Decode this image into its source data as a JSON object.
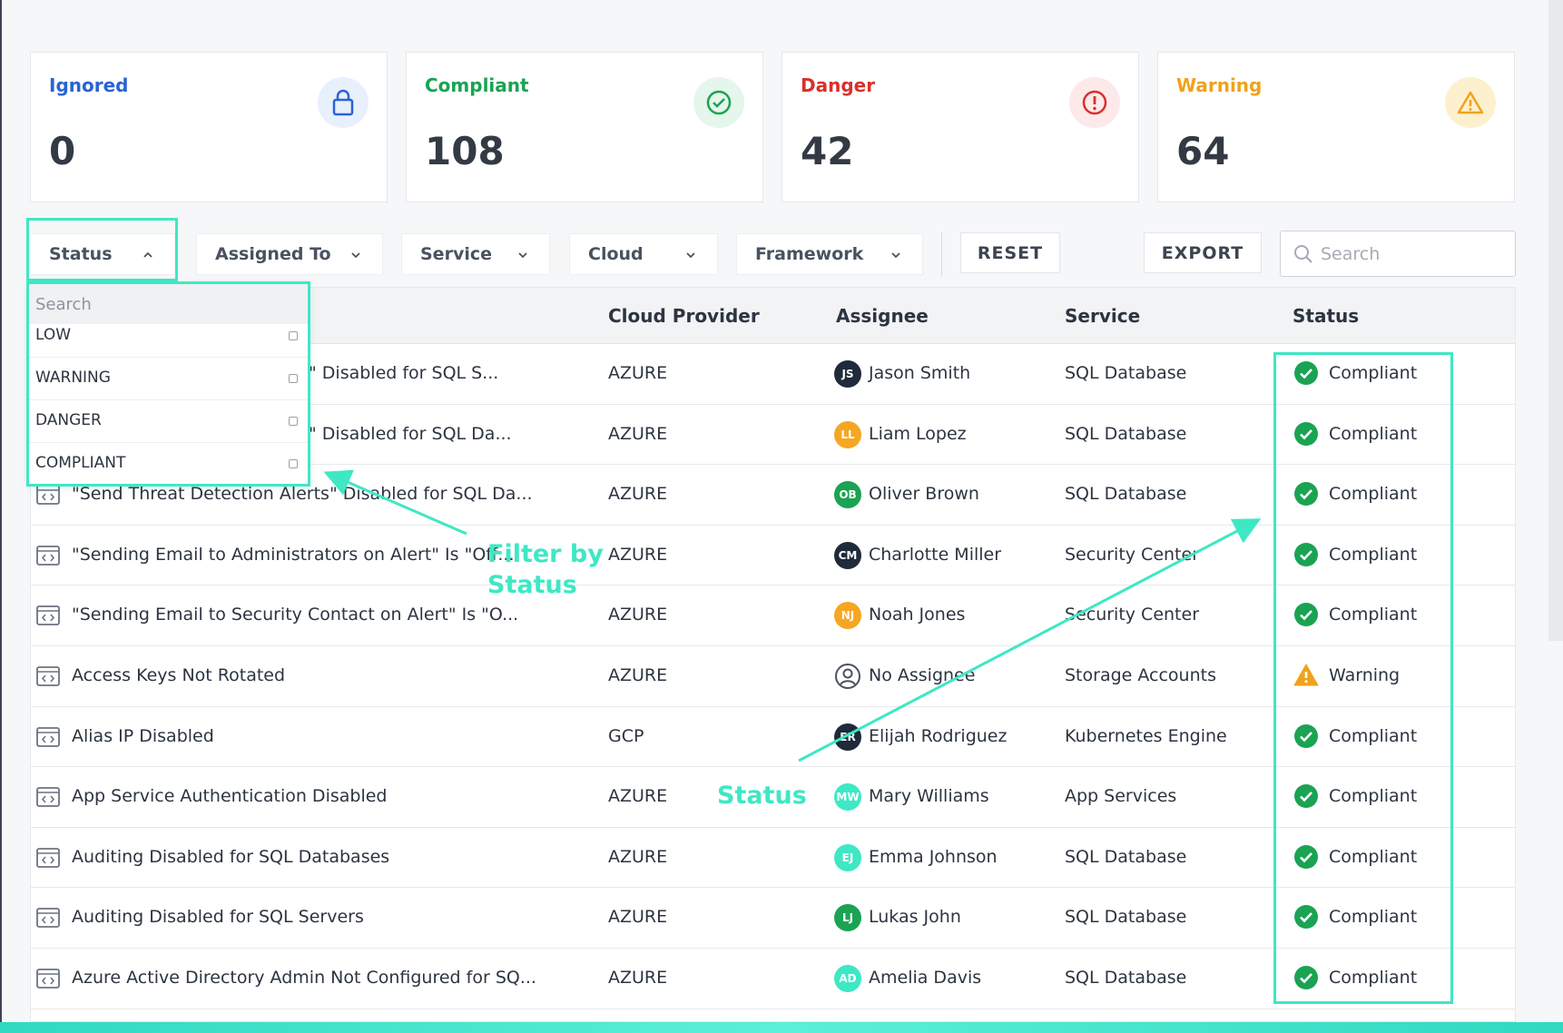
{
  "cards": [
    {
      "label": "Ignored",
      "value": "0",
      "color": "#2a63d4",
      "icon": "lock-icon"
    },
    {
      "label": "Compliant",
      "value": "108",
      "color": "#1aa353",
      "icon": "check-circle-icon"
    },
    {
      "label": "Danger",
      "value": "42",
      "color": "#d9302c",
      "icon": "exclamation-circle-icon"
    },
    {
      "label": "Warning",
      "value": "64",
      "color": "#f0a21b",
      "icon": "warning-triangle-icon"
    }
  ],
  "filters": {
    "status": "Status",
    "assigned_to": "Assigned To",
    "service": "Service",
    "cloud": "Cloud",
    "framework": "Framework"
  },
  "buttons": {
    "reset": "RESET",
    "export": "EXPORT"
  },
  "search": {
    "placeholder": "Search"
  },
  "table": {
    "headers": {
      "cloud_provider": "Cloud Provider",
      "assignee": "Assignee",
      "service": "Service",
      "status": "Status"
    },
    "rows": [
      {
        "name": "\" Disabled for SQL S...",
        "cloud": "AZURE",
        "initials": "JS",
        "avatar_color": "#1f2a3a",
        "assignee": "Jason Smith",
        "service": "SQL Database",
        "status": "Compliant"
      },
      {
        "name": "\" Disabled for SQL Da...",
        "cloud": "AZURE",
        "initials": "LL",
        "avatar_color": "#f5a623",
        "assignee": "Liam Lopez",
        "service": "SQL Database",
        "status": "Compliant"
      },
      {
        "name": "\"Send Threat Detection Alerts\" Disabled for SQL Da...",
        "cloud": "AZURE",
        "initials": "OB",
        "avatar_color": "#1aa353",
        "assignee": "Oliver Brown",
        "service": "SQL Database",
        "status": "Compliant"
      },
      {
        "name": "\"Sending Email to Administrators on Alert\" Is \"Off...",
        "cloud": "AZURE",
        "initials": "CM",
        "avatar_color": "#1f2a3a",
        "assignee": "Charlotte Miller",
        "service": "Security Center",
        "status": "Compliant"
      },
      {
        "name": "\"Sending Email to Security Contact on Alert\" Is \"O...",
        "cloud": "AZURE",
        "initials": "NJ",
        "avatar_color": "#f5a623",
        "assignee": "Noah Jones",
        "service": "Security Center",
        "status": "Compliant"
      },
      {
        "name": "Access Keys Not Rotated",
        "cloud": "AZURE",
        "initials": "",
        "avatar_color": "#ffffff",
        "assignee": "No Assignee",
        "service": "Storage Accounts",
        "status": "Warning"
      },
      {
        "name": "Alias IP Disabled",
        "cloud": "GCP",
        "initials": "ER",
        "avatar_color": "#1f2a3a",
        "assignee": "Elijah Rodriguez",
        "service": "Kubernetes Engine",
        "status": "Compliant"
      },
      {
        "name": "App Service Authentication Disabled",
        "cloud": "AZURE",
        "initials": "MW",
        "avatar_color": "#3ee8c4",
        "assignee": "Mary Williams",
        "service": "App Services",
        "status": "Compliant"
      },
      {
        "name": "Auditing Disabled for SQL Databases",
        "cloud": "AZURE",
        "initials": "EJ",
        "avatar_color": "#3ee8c4",
        "assignee": "Emma Johnson",
        "service": "SQL Database",
        "status": "Compliant"
      },
      {
        "name": "Auditing Disabled for SQL Servers",
        "cloud": "AZURE",
        "initials": "LJ",
        "avatar_color": "#1aa353",
        "assignee": "Lukas John",
        "service": "SQL Database",
        "status": "Compliant"
      },
      {
        "name": "Azure Active Directory Admin Not Configured for SQ...",
        "cloud": "AZURE",
        "initials": "AD",
        "avatar_color": "#3ee8c4",
        "assignee": "Amelia Davis",
        "service": "SQL Database",
        "status": "Compliant"
      }
    ]
  },
  "dropdown": {
    "search_placeholder": "Search",
    "options": [
      "LOW",
      "WARNING",
      "DANGER",
      "COMPLIANT"
    ]
  },
  "annotations": {
    "filter_by_status_line1": "Filter by",
    "filter_by_status_line2": "Status",
    "status": "Status"
  },
  "colors": {
    "accent": "#3ee8c4",
    "compliant": "#1aa353",
    "warning": "#f0a21b"
  }
}
